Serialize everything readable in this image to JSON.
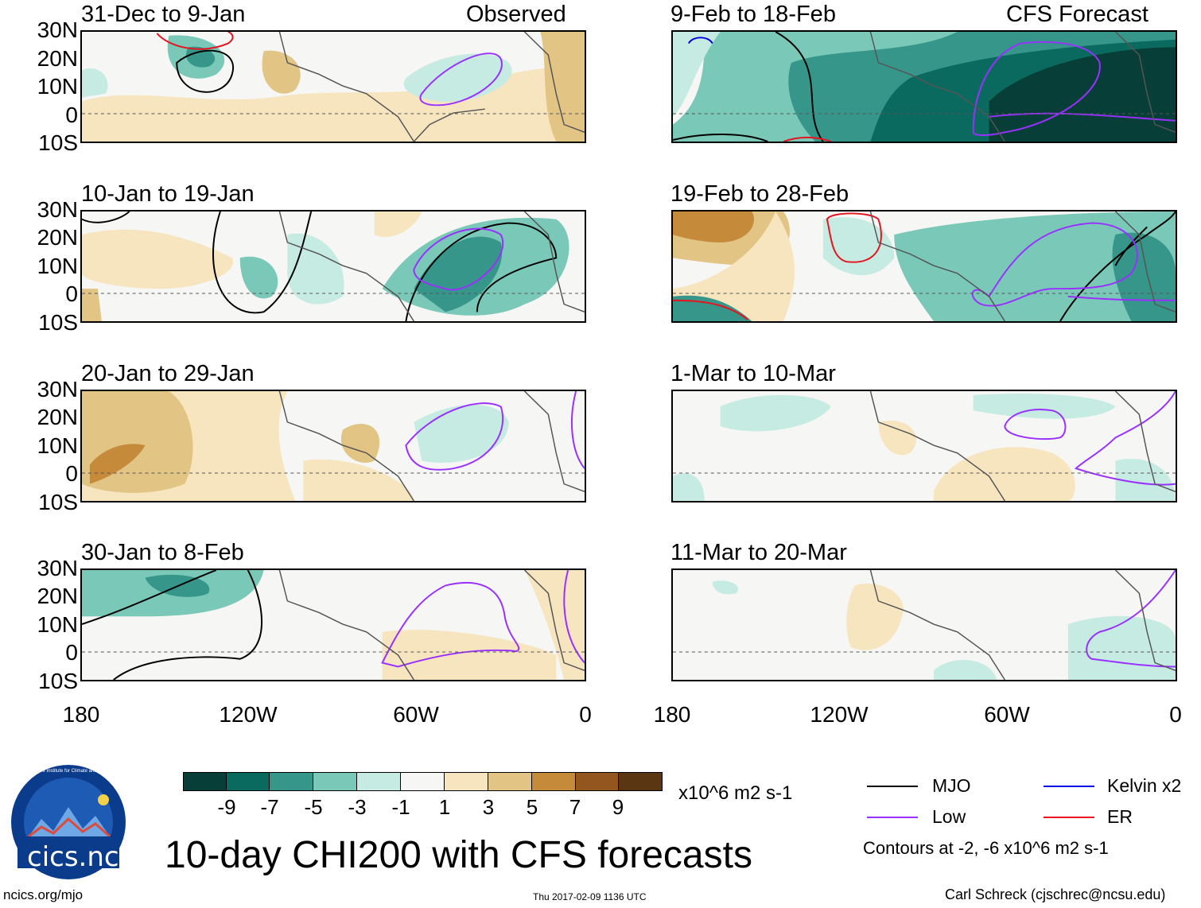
{
  "left_column_label": "Observed",
  "right_column_label": "CFS Forecast",
  "panels": [
    {
      "period": "31-Dec to 9-Jan"
    },
    {
      "period": "10-Jan to 19-Jan"
    },
    {
      "period": "20-Jan to 29-Jan"
    },
    {
      "period": "30-Jan to 8-Feb"
    },
    {
      "period": "9-Feb to 18-Feb"
    },
    {
      "period": "19-Feb to 28-Feb"
    },
    {
      "period": "1-Mar to 10-Mar"
    },
    {
      "period": "11-Mar to 20-Mar"
    }
  ],
  "latitude_labels": [
    "30N",
    "20N",
    "10N",
    "0",
    "10S"
  ],
  "longitude_labels": [
    "180",
    "120W",
    "60W",
    "0"
  ],
  "colorbar": {
    "colors": [
      "#073f38",
      "#0b6a5f",
      "#37968a",
      "#79c8b8",
      "#c5ebe2",
      "#f6f6f4",
      "#f6e5bf",
      "#e2c485",
      "#c68a3b",
      "#94561f",
      "#5b3613"
    ],
    "labels": [
      "-9",
      "-7",
      "-5",
      "-3",
      "-1",
      "1",
      "3",
      "5",
      "7",
      "9"
    ],
    "units": "x10^6 m2 s-1"
  },
  "legend": {
    "items": [
      {
        "label": "MJO",
        "color": "#000000"
      },
      {
        "label": "Kelvin x2",
        "color": "#0000e6"
      },
      {
        "label": "Low",
        "color": "#9a30ff"
      },
      {
        "label": "ER",
        "color": "#e6141e"
      }
    ],
    "contours_note": "Contours at -2, -6 x10^6 m2 s-1"
  },
  "logo": {
    "text": "cics.nc",
    "ring_text": "Cooperative Institute for Climate and Satellites"
  },
  "main_title": "10-day CHI200 with CFS forecasts",
  "footer": {
    "url": "ncics.org/mjo",
    "timestamp": "Thu 2017-02-09 1136 UTC",
    "credit": "Carl Schreck (cjschrec@ncsu.edu)"
  }
}
